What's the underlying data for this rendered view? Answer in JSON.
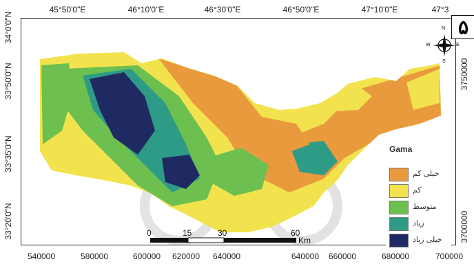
{
  "panel_number": "۵",
  "top_axis_labels": [
    "45°50'0\"E",
    "46°10'0\"E",
    "46°30'0\"E",
    "46°50'0\"E",
    "47°10'0\"E",
    "47°3"
  ],
  "bottom_axis_labels": [
    "540000",
    "580000",
    "600000",
    "620000",
    "640000",
    "640000",
    "660000",
    "680000",
    "700000"
  ],
  "left_axis_labels": [
    "34°0'0\"N",
    "33°50'0\"N",
    "33°35'0\"N",
    "33°20'0\"N"
  ],
  "right_axis_labels": [
    "3750000",
    "3700000"
  ],
  "north_arrow": {
    "n": "N",
    "s": "S",
    "e": "E",
    "w": "W"
  },
  "legend": {
    "title": "Gama",
    "items": [
      {
        "label": "خیلی کم",
        "color": "#e99a3d"
      },
      {
        "label": "کم",
        "color": "#f2e34e"
      },
      {
        "label": "متوسط",
        "color": "#6dbf4f"
      },
      {
        "label": "زیاد",
        "color": "#2e9b86"
      },
      {
        "label": "خیلی زیاد",
        "color": "#1f2a63"
      }
    ]
  },
  "scale_bar": {
    "ticks": [
      "0",
      "15",
      "30",
      "60"
    ],
    "unit": "Km"
  }
}
